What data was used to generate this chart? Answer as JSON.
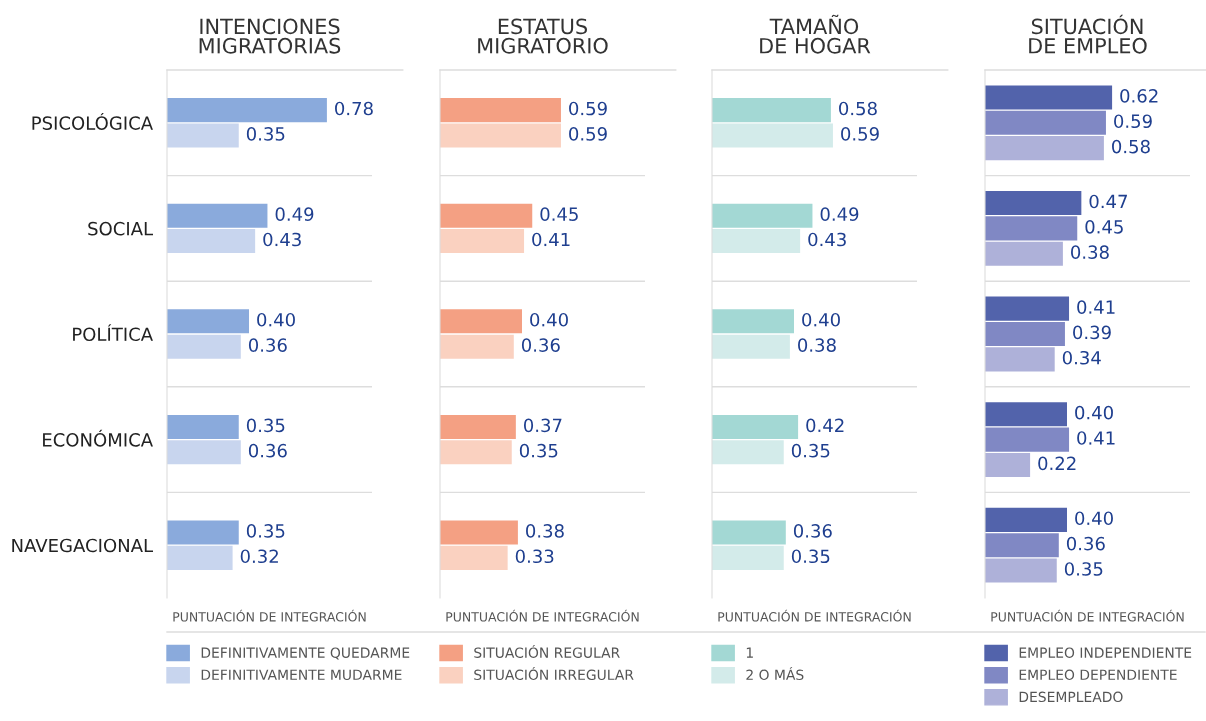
{
  "chart_data": [
    {
      "type": "bar",
      "orientation": "horizontal",
      "title": "INTENCIONES\nMIGRATORIAS",
      "xlabel": "PUNTUACIÓN DE INTEGRACIÓN",
      "categories": [
        "PSICOLÓGICA",
        "SOCIAL",
        "POLÍTICA",
        "ECONÓMICA",
        "NAVEGACIONAL"
      ],
      "xlim": [
        0,
        1
      ],
      "grid": "y",
      "legend": "bottom",
      "tick_labels": "y",
      "series": [
        {
          "name": "DEFINITIVAMENTE QUEDARME",
          "color": "#8aaadc",
          "values": [
            0.78,
            0.49,
            0.4,
            0.35,
            0.35
          ],
          "value_labels": [
            "0.78",
            "0.49",
            "0.40",
            "0.35",
            "0.35"
          ]
        },
        {
          "name": "DEFINITIVAMENTE MUDARME",
          "color": "#c8d5ee",
          "values": [
            0.35,
            0.43,
            0.36,
            0.36,
            0.32
          ],
          "value_labels": [
            "0.35",
            "0.43",
            "0.36",
            "0.36",
            "0.32"
          ]
        }
      ]
    },
    {
      "type": "bar",
      "orientation": "horizontal",
      "title": "ESTATUS\nMIGRATORIO",
      "xlabel": "PUNTUACIÓN DE INTEGRACIÓN",
      "categories": [
        null,
        null,
        null,
        null,
        null
      ],
      "xlim": [
        0,
        1
      ],
      "grid": "y",
      "legend": "bottom",
      "series": [
        {
          "name": "SITUACIÓN REGULAR",
          "color": "#f4a083",
          "values": [
            0.59,
            0.45,
            0.4,
            0.37,
            0.38
          ],
          "value_labels": [
            "0.59",
            "0.45",
            "0.40",
            "0.37",
            "0.38"
          ]
        },
        {
          "name": "SITUACIÓN IRREGULAR",
          "color": "#fad1c0",
          "values": [
            0.59,
            0.41,
            0.36,
            0.35,
            0.33
          ],
          "value_labels": [
            "0.59",
            "0.41",
            "0.36",
            "0.35",
            "0.33"
          ]
        }
      ]
    },
    {
      "type": "bar",
      "orientation": "horizontal",
      "title": "TAMAÑO\nDE HOGAR",
      "xlabel": "PUNTUACIÓN DE INTEGRACIÓN",
      "categories": [
        null,
        null,
        null,
        null,
        null
      ],
      "xlim": [
        0,
        1
      ],
      "grid": "y",
      "legend": "bottom",
      "series": [
        {
          "name": "1",
          "color": "#a3d8d4",
          "values": [
            0.58,
            0.49,
            0.4,
            0.42,
            0.36
          ],
          "value_labels": [
            "0.58",
            "0.49",
            "0.40",
            "0.42",
            "0.36"
          ]
        },
        {
          "name": "2 O MÁS",
          "color": "#d3ebea",
          "values": [
            0.59,
            0.43,
            0.38,
            0.35,
            0.35
          ],
          "value_labels": [
            "0.59",
            "0.43",
            "0.38",
            "0.35",
            "0.35"
          ]
        }
      ]
    },
    {
      "type": "bar",
      "orientation": "horizontal",
      "title": "SITUACIÓN\nDE EMPLEO",
      "xlabel": "PUNTUACIÓN DE INTEGRACIÓN",
      "categories": [
        null,
        null,
        null,
        null,
        null
      ],
      "xlim": [
        0,
        1
      ],
      "grid": "y",
      "legend": "bottom",
      "series": [
        {
          "name": "EMPLEO INDEPENDIENTE",
          "color": "#5263ab",
          "values": [
            0.62,
            0.47,
            0.41,
            0.4,
            0.4
          ],
          "value_labels": [
            "0.62",
            "0.47",
            "0.41",
            "0.40",
            "0.40"
          ]
        },
        {
          "name": "EMPLEO DEPENDIENTE",
          "color": "#8088c4",
          "values": [
            0.59,
            0.45,
            0.39,
            0.41,
            0.36
          ],
          "value_labels": [
            "0.59",
            "0.45",
            "0.39",
            "0.41",
            "0.36"
          ]
        },
        {
          "name": "DESEMPLEADO",
          "color": "#aeb1d9",
          "values": [
            0.58,
            0.38,
            0.34,
            0.22,
            0.35
          ],
          "value_labels": [
            "0.58",
            "0.38",
            "0.34",
            "0.22",
            "0.35"
          ]
        }
      ]
    }
  ]
}
